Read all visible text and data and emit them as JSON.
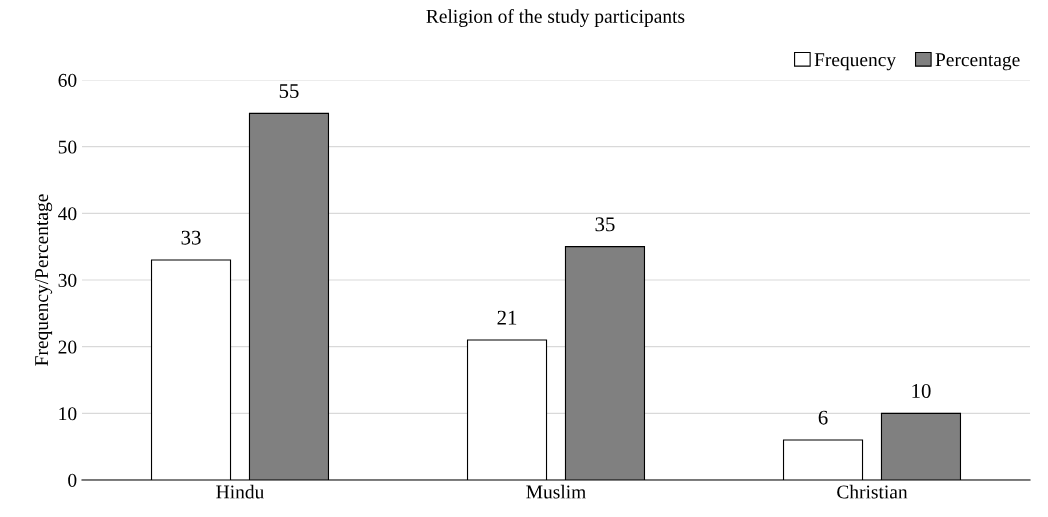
{
  "chart_data": {
    "type": "bar",
    "title": "Religion of the study participants",
    "ylabel": "Frequency/Percentage",
    "categories": [
      "Hindu",
      "Muslim",
      "Christian"
    ],
    "series": [
      {
        "name": "Frequency",
        "color": "#ffffff",
        "values": [
          33,
          21,
          6
        ]
      },
      {
        "name": "Percentage",
        "color": "#808080",
        "values": [
          55,
          35,
          10
        ]
      }
    ],
    "ylim": [
      0,
      60
    ],
    "yticks": [
      0,
      10,
      20,
      30,
      40,
      50,
      60
    ],
    "grid": "y",
    "legend": "top right",
    "data_labels": true
  }
}
